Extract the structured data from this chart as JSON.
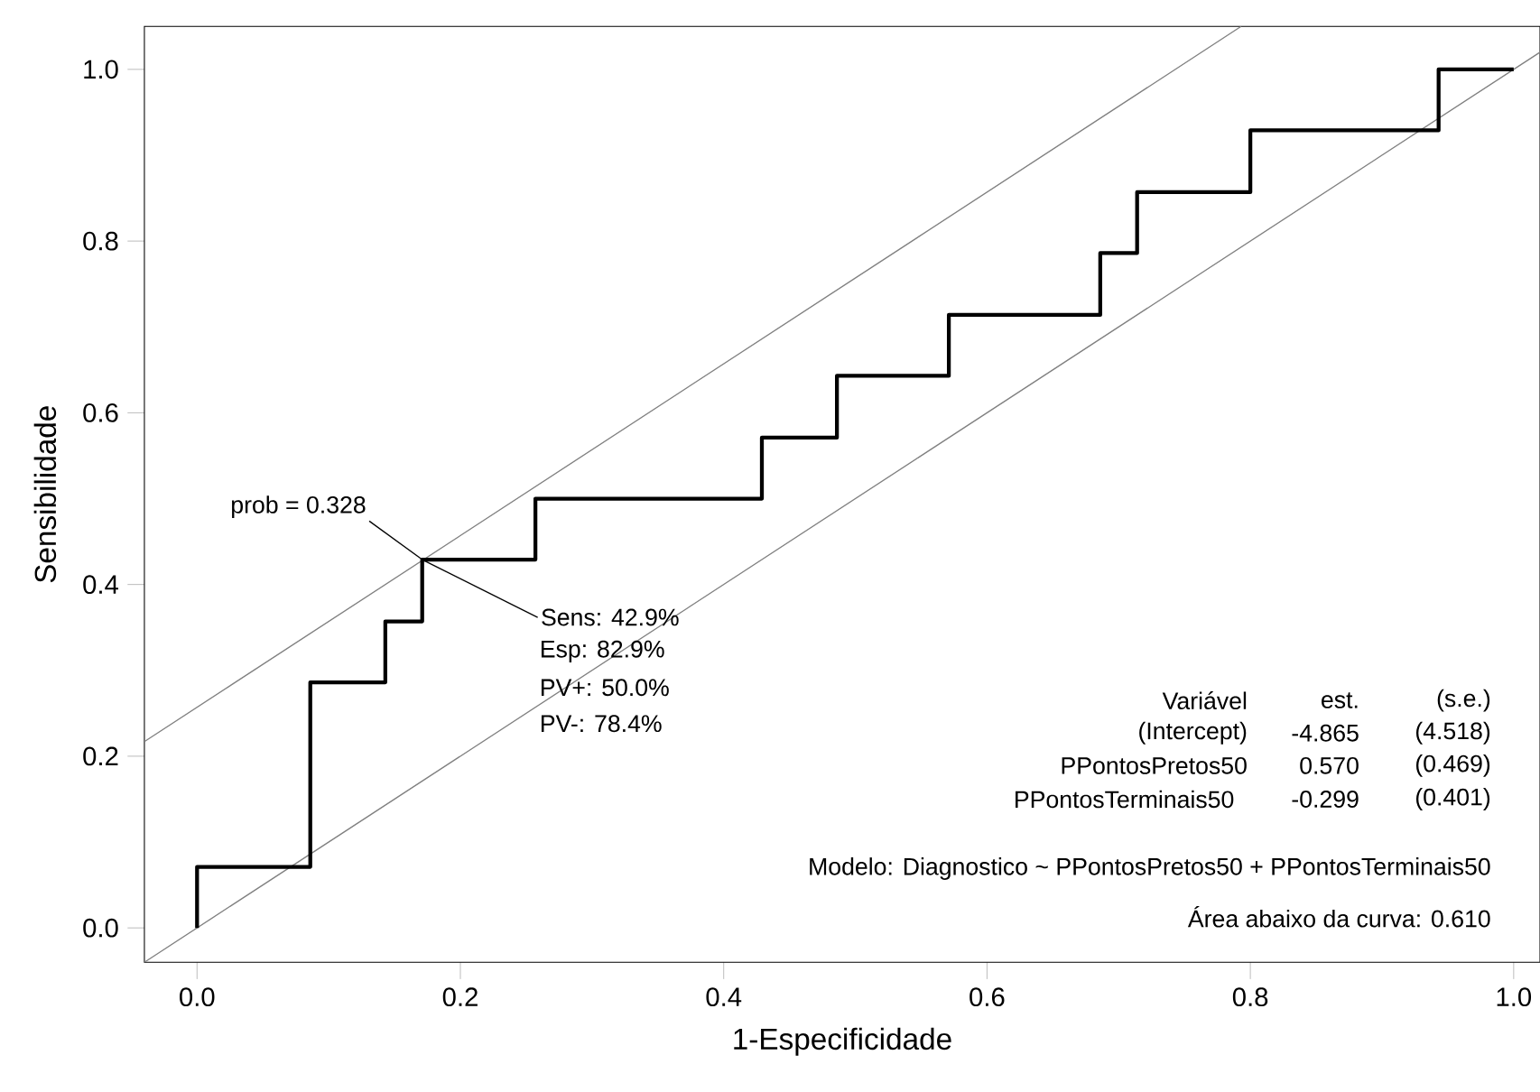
{
  "chart_data": {
    "type": "step",
    "xlabel": "1-Especificidade",
    "ylabel": "Sensibilidade",
    "xlim": [
      -0.04,
      1.02
    ],
    "ylim": [
      -0.04,
      1.05
    ],
    "xticks": [
      {
        "value": 0,
        "label": "0.0"
      },
      {
        "value": 0.2,
        "label": "0.2"
      },
      {
        "value": 0.4,
        "label": "0.4"
      },
      {
        "value": 0.6,
        "label": "0.6"
      },
      {
        "value": 0.8,
        "label": "0.8"
      },
      {
        "value": 1,
        "label": "1.0"
      }
    ],
    "yticks": [
      {
        "value": 0,
        "label": "0.0"
      },
      {
        "value": 0.2,
        "label": "0.2"
      },
      {
        "value": 0.4,
        "label": "0.4"
      },
      {
        "value": 0.6,
        "label": "0.6"
      },
      {
        "value": 0.8,
        "label": "0.8"
      },
      {
        "value": 1,
        "label": "1.0"
      }
    ],
    "series": [
      {
        "type": "line",
        "color": "#808080",
        "x": [
          -0.04,
          1.02
        ],
        "values": [
          -0.04,
          1.02
        ]
      },
      {
        "type": "line",
        "color": "#808080",
        "x": [
          -0.04,
          0.793
        ],
        "values": [
          0.217,
          1.05
        ]
      },
      {
        "color": "#000000",
        "x": [
          0,
          0,
          0.086,
          0.143,
          0.171,
          0.257,
          0.429,
          0.486,
          0.571,
          0.686,
          0.714,
          0.8,
          0.943,
          1
        ],
        "values": [
          0,
          0.071,
          0.286,
          0.357,
          0.429,
          0.5,
          0.571,
          0.643,
          0.714,
          0.786,
          0.857,
          0.929,
          1,
          1
        ]
      }
    ],
    "annotations": [
      {
        "text": "prob = 0.328",
        "x": 0.171,
        "y": 0.429
      },
      {
        "text": "Sens: 42.9%",
        "x": 0.171,
        "y": 0.429
      },
      "Esp: 82.9%",
      "PV+: 50.0%",
      "PV-: 78.4%",
      "Variável",
      "est.",
      "(s.e.)",
      "(Intercept)",
      "-4.865",
      "(4.518)",
      "PPontosPretos50",
      "0.570",
      "(0.469)",
      "PPontosTerminais50",
      "-0.299",
      "(0.401)",
      "Modelo:  Diagnostico ~ PPontosPretos50 + PPontosTerminais50",
      "Área abaixo da curva: 0.610"
    ]
  }
}
